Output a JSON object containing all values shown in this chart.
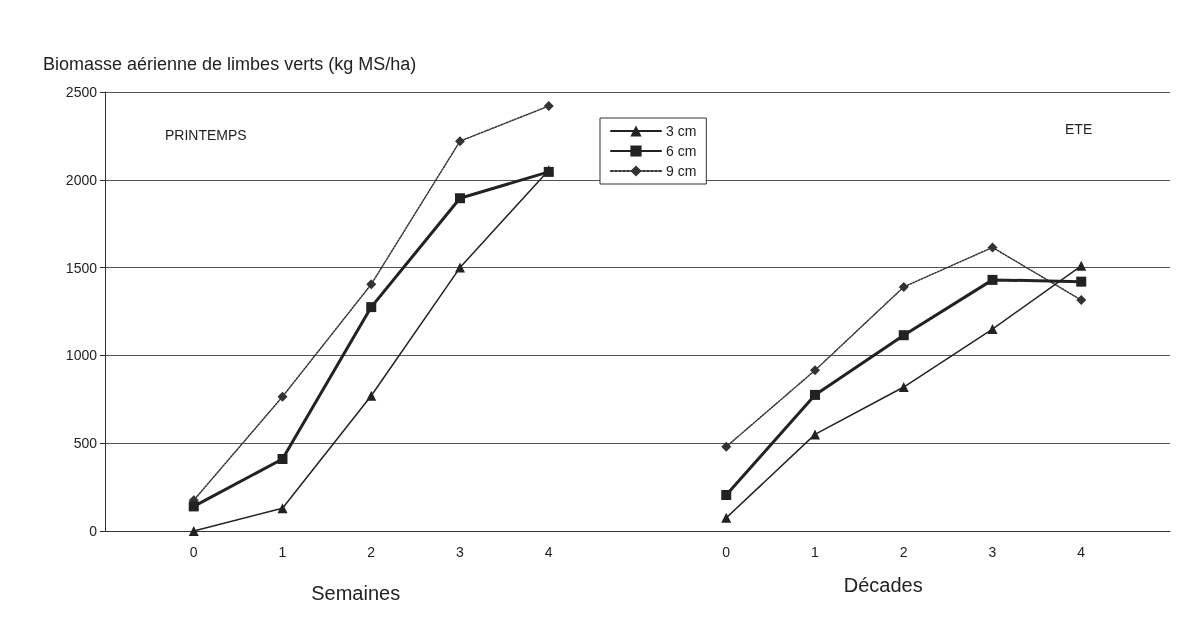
{
  "chart_data": {
    "type": "line",
    "title": "Biomasse aérienne de limbes verts (kg MS/ha)",
    "xlabel": "Semaines",
    "annotations": [
      "PRINTEMPS",
      "ETE",
      "Décades"
    ],
    "categories": [
      "0",
      "1",
      "2",
      "3",
      "4",
      null,
      "0",
      "1",
      "2",
      "3",
      "4"
    ],
    "series": [
      {
        "name": "3 cm",
        "color": "#222222",
        "marker": "triangle",
        "line_style": "solid",
        "values": [
          0,
          130,
          770,
          1500,
          2055,
          null,
          75,
          550,
          820,
          1150,
          1510
        ]
      },
      {
        "name": "6 cm",
        "color": "#222222",
        "marker": "square",
        "line_style": "solid",
        "values": [
          140,
          410,
          1275,
          1895,
          2045,
          null,
          205,
          775,
          1115,
          1430,
          1420
        ]
      },
      {
        "name": "9 cm",
        "color": "#333333",
        "marker": "diamond",
        "line_style": "dotted",
        "values": [
          175,
          765,
          1405,
          2220,
          2420,
          null,
          480,
          915,
          1390,
          1615,
          1315
        ]
      }
    ],
    "ylim": [
      0,
      2500
    ],
    "yticks": [
      0,
      500,
      1000,
      1500,
      2000,
      2500
    ],
    "grid": "y",
    "legend": "top"
  }
}
